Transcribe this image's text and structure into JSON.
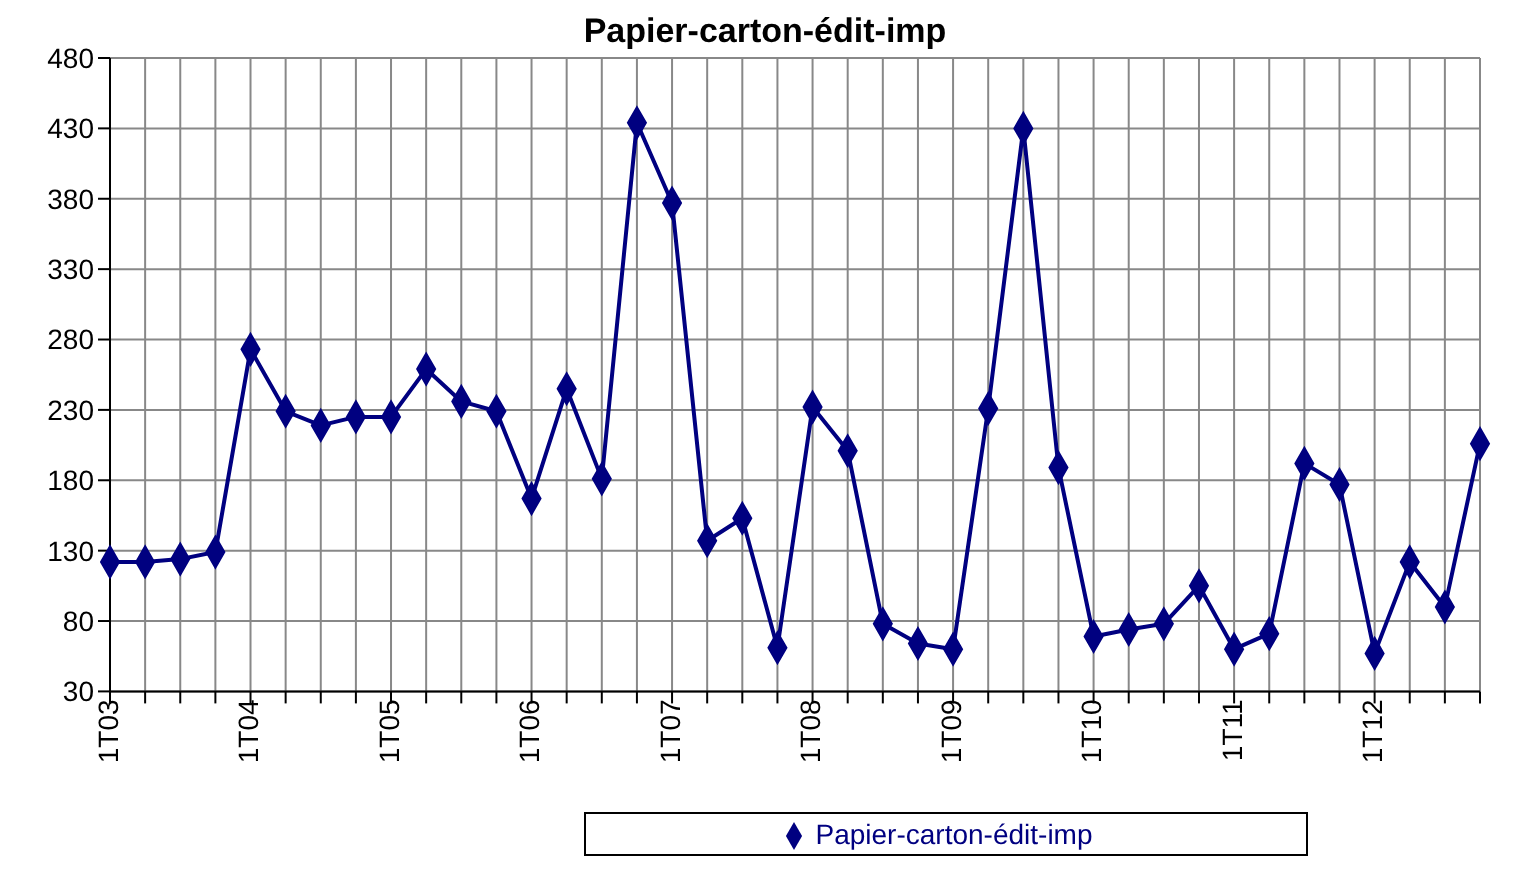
{
  "chart_data": {
    "type": "line",
    "title": "Papier-carton-édit-imp",
    "categories": [
      "1T03",
      null,
      null,
      null,
      "1T04",
      null,
      null,
      null,
      "1T05",
      null,
      null,
      null,
      "1T06",
      null,
      null,
      null,
      "1T07",
      null,
      null,
      null,
      "1T08",
      null,
      null,
      null,
      "1T09",
      null,
      null,
      null,
      "1T10",
      null,
      null,
      null,
      "1T11",
      null,
      null,
      null,
      "1T12",
      null,
      null,
      null
    ],
    "series": [
      {
        "name": "Papier-carton-édit-imp",
        "color": "#000080",
        "values": [
          122,
          122,
          124,
          129,
          273,
          229,
          219,
          225,
          225,
          259,
          236,
          229,
          167,
          245,
          181,
          434,
          377,
          137,
          153,
          61,
          232,
          201,
          78,
          64,
          60,
          231,
          430,
          189,
          69,
          74,
          78,
          105,
          60,
          71,
          192,
          177,
          57,
          122,
          90,
          206
        ]
      }
    ],
    "ylim": [
      30,
      480
    ],
    "yticks": [
      30,
      80,
      130,
      180,
      230,
      280,
      330,
      380,
      430,
      480
    ],
    "grid": true,
    "legend": "bottom",
    "marker": "diamond",
    "line_style": "solid"
  }
}
